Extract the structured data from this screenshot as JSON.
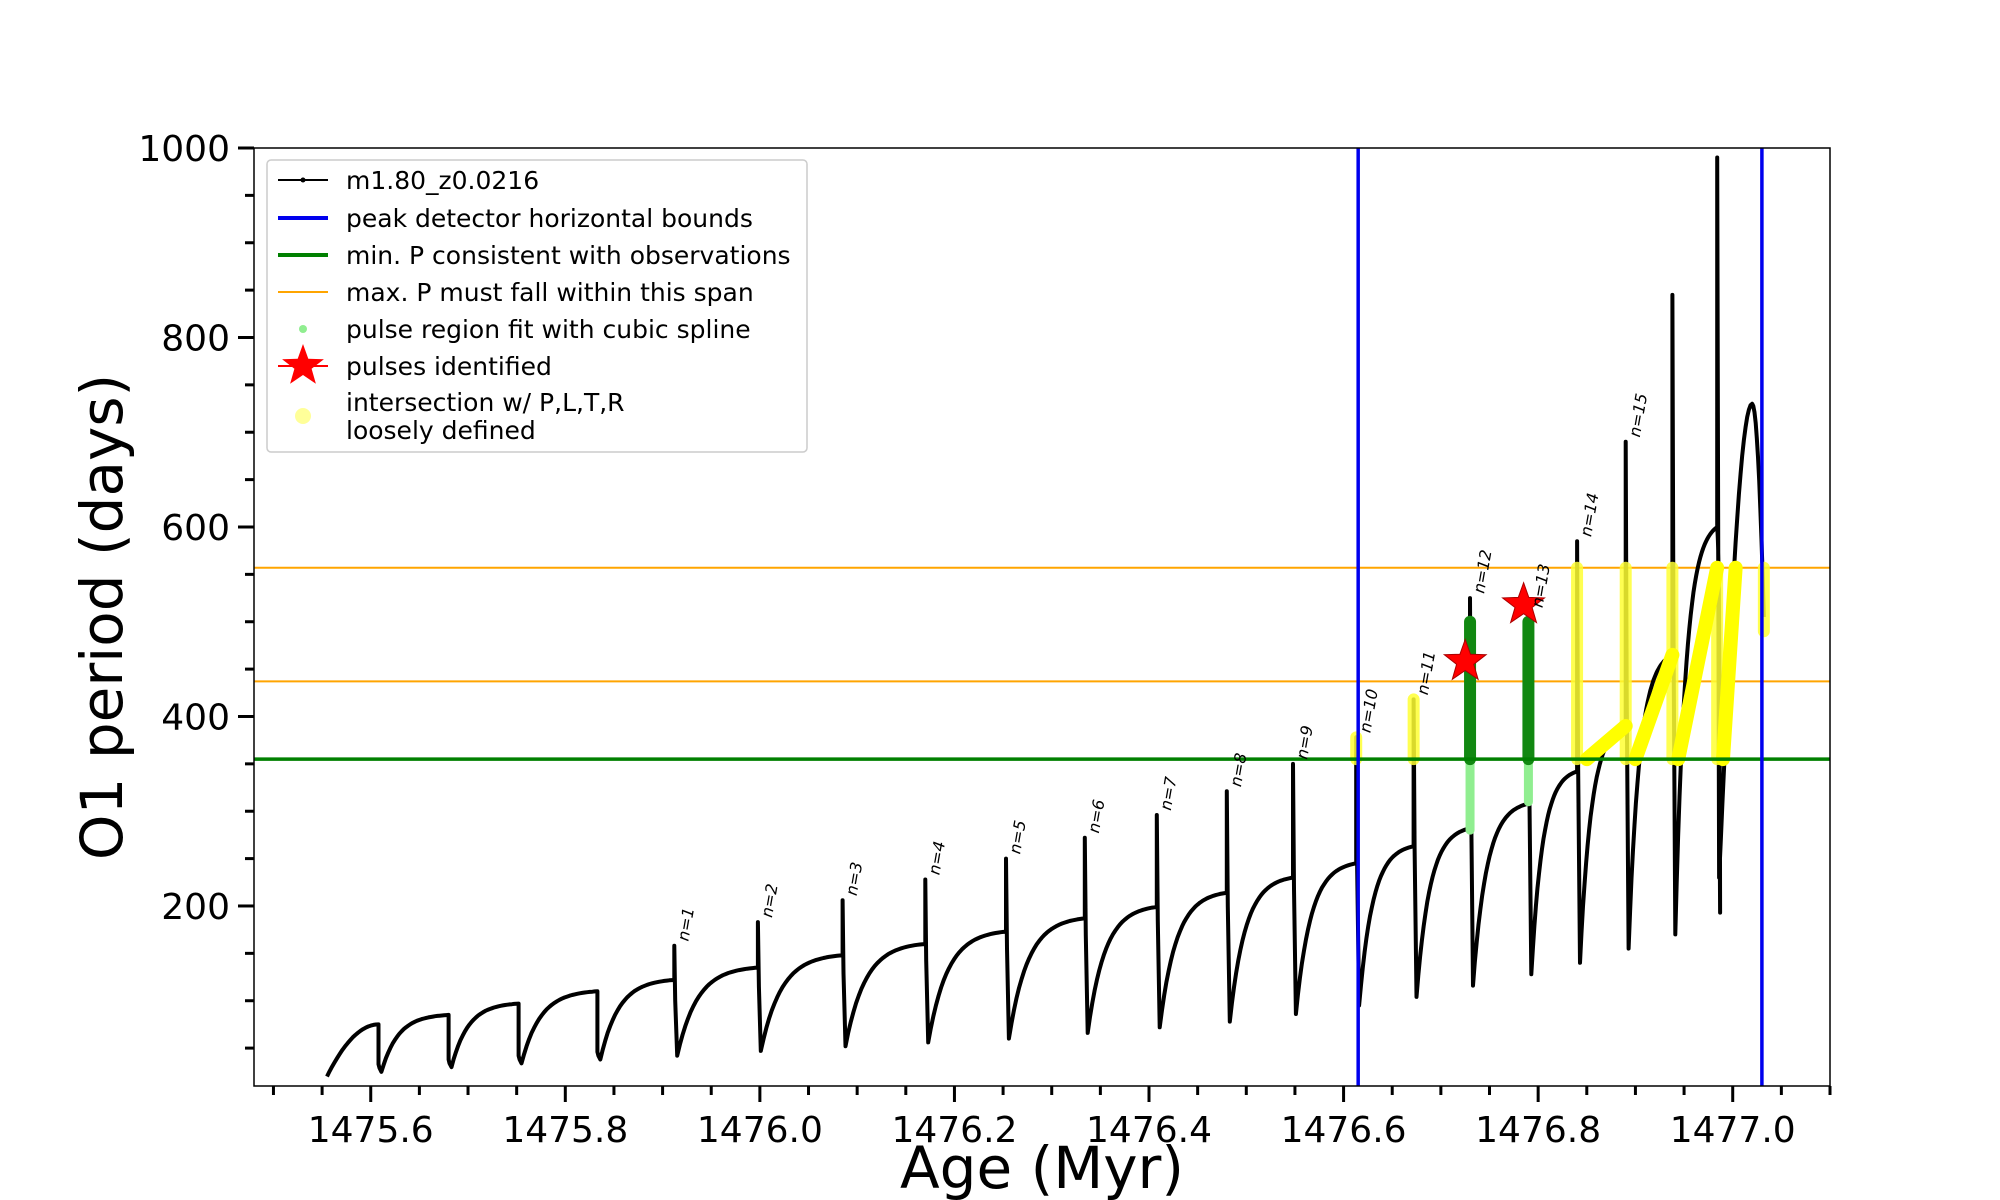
{
  "chart_data": {
    "type": "line",
    "title": "",
    "xlabel": "Age (Myr)",
    "ylabel": "O1 period (days)",
    "xlim": [
      1475.48,
      1477.1
    ],
    "ylim": [
      10,
      1000
    ],
    "xticks": [
      1475.6,
      1475.8,
      1476.0,
      1476.2,
      1476.4,
      1476.6,
      1476.8,
      1477.0
    ],
    "xtick_labels": [
      "1475.6",
      "1475.8",
      "1476.0",
      "1476.2",
      "1476.4",
      "1476.6",
      "1476.8",
      "1477.0"
    ],
    "yticks": [
      200,
      400,
      600,
      800,
      1000
    ],
    "ytick_labels": [
      "200",
      "400",
      "600",
      "800",
      "1000"
    ],
    "grid": false,
    "legend_position": "top-left",
    "legend": [
      {
        "label": "m1.80_z0.0216",
        "kind": "line-dot",
        "color": "#000000"
      },
      {
        "label": "peak detector horizontal bounds",
        "kind": "line",
        "color": "#0000ee"
      },
      {
        "label": "min. P consistent with observations",
        "kind": "line",
        "color": "#008000"
      },
      {
        "label": "max. P must fall within this span",
        "kind": "line",
        "color": "#ffa500"
      },
      {
        "label": "pulse region fit with cubic spline",
        "kind": "dot",
        "color": "#90ee90"
      },
      {
        "label": "pulses identified",
        "kind": "star",
        "color": "#ff0000"
      },
      {
        "label": "intersection w/ P,L,T,R\nloosely defined",
        "kind": "dot-faint",
        "color": "#ffff99"
      }
    ],
    "vertical_lines": [
      1476.615,
      1477.03
    ],
    "min_period": 355,
    "max_period_span": [
      437,
      557
    ],
    "pulses": [
      {
        "label": "n=1",
        "t": 1475.912,
        "peak": 158,
        "post_min": 42,
        "prev_end": 122
      },
      {
        "label": "n=2",
        "t": 1475.998,
        "peak": 183,
        "post_min": 47,
        "prev_end": 135
      },
      {
        "label": "n=3",
        "t": 1476.085,
        "peak": 206,
        "post_min": 52,
        "prev_end": 148
      },
      {
        "label": "n=4",
        "t": 1476.17,
        "peak": 228,
        "post_min": 56,
        "prev_end": 160
      },
      {
        "label": "n=5",
        "t": 1476.253,
        "peak": 250,
        "post_min": 60,
        "prev_end": 173
      },
      {
        "label": "n=6",
        "t": 1476.334,
        "peak": 272,
        "post_min": 66,
        "prev_end": 187
      },
      {
        "label": "n=7",
        "t": 1476.408,
        "peak": 296,
        "post_min": 72,
        "prev_end": 199
      },
      {
        "label": "n=8",
        "t": 1476.48,
        "peak": 321,
        "post_min": 78,
        "prev_end": 214
      },
      {
        "label": "n=9",
        "t": 1476.548,
        "peak": 350,
        "post_min": 86,
        "prev_end": 230
      },
      {
        "label": "n=10",
        "t": 1476.613,
        "peak": 378,
        "post_min": 95,
        "prev_end": 245
      },
      {
        "label": "n=11",
        "t": 1476.672,
        "peak": 418,
        "post_min": 104,
        "prev_end": 263
      },
      {
        "label": "n=12",
        "t": 1476.73,
        "peak": 525,
        "post_min": 116,
        "prev_end": 282
      },
      {
        "label": "n=13",
        "t": 1476.79,
        "peak": 510,
        "post_min": 128,
        "prev_end": 308
      },
      {
        "label": "n=14",
        "t": 1476.84,
        "peak": 585,
        "post_min": 140,
        "prev_end": 342
      },
      {
        "label": "n=15",
        "t": 1476.89,
        "peak": 690,
        "post_min": 155,
        "prev_end": 390
      }
    ],
    "late_spikes": [
      {
        "t": 1476.938,
        "peak": 845,
        "post_min": 170,
        "prev_end": 465
      },
      {
        "t": 1476.984,
        "peak": 990,
        "post_min": 193,
        "prev_end": 600
      }
    ],
    "first_segment": {
      "t0": 1475.555,
      "t1": 1475.608,
      "start": 20,
      "end": 75
    },
    "segment_starts": [
      {
        "t": 1475.608,
        "min": 25,
        "end": 85,
        "next": 1475.68
      },
      {
        "t": 1475.68,
        "min": 30,
        "end": 97,
        "next": 1475.752
      },
      {
        "t": 1475.752,
        "min": 34,
        "end": 110,
        "next": 1475.833
      },
      {
        "t": 1475.833,
        "min": 38,
        "end": 122,
        "next": 1475.912
      }
    ],
    "final_hump": {
      "t0": 1476.984,
      "peak_t": 1477.02,
      "peak": 730,
      "end_t": 1477.032,
      "end": 505
    },
    "identified_pulses": [
      {
        "t": 1476.725,
        "p": 458
      },
      {
        "t": 1476.785,
        "p": 518
      }
    ],
    "green_fit_regions": [
      {
        "t": 1476.73,
        "low": 280,
        "high": 500
      },
      {
        "t": 1476.79,
        "low": 310,
        "high": 500
      }
    ],
    "yellow_regions": [
      {
        "t": 1476.613,
        "low": 355,
        "high": 378
      },
      {
        "t": 1476.672,
        "low": 355,
        "high": 418
      },
      {
        "t": 1476.84,
        "low": 355,
        "high": 557
      },
      {
        "t": 1476.89,
        "low": 355,
        "high": 557
      },
      {
        "t": 1476.938,
        "low": 355,
        "high": 557
      },
      {
        "t": 1476.984,
        "low": 355,
        "high": 557
      },
      {
        "t": 1477.032,
        "low": 490,
        "high": 557
      }
    ],
    "yellow_ramps": [
      {
        "t0": 1476.85,
        "p0": 355,
        "t1": 1476.89,
        "p1": 390
      },
      {
        "t0": 1476.9,
        "p0": 355,
        "t1": 1476.938,
        "p1": 465
      },
      {
        "t0": 1476.944,
        "p0": 355,
        "t1": 1476.984,
        "p1": 557
      },
      {
        "t0": 1476.99,
        "p0": 355,
        "t1": 1477.003,
        "p1": 557
      }
    ]
  }
}
